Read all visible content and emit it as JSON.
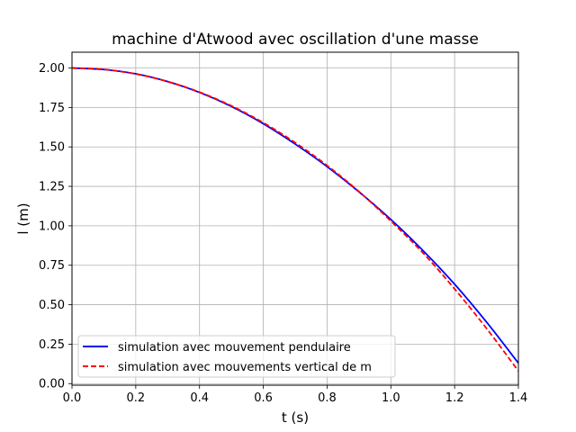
{
  "chart_data": {
    "type": "line",
    "title": "machine d'Atwood avec oscillation d'une masse",
    "xlabel": "t (s)",
    "ylabel": "l (m)",
    "xlim": [
      0,
      1.4
    ],
    "ylim": [
      -0.01,
      2.1
    ],
    "xticks": [
      "0.0",
      "0.2",
      "0.4",
      "0.6",
      "0.8",
      "1.0",
      "1.2",
      "1.4"
    ],
    "yticks": [
      "0.00",
      "0.25",
      "0.50",
      "0.75",
      "1.00",
      "1.25",
      "1.50",
      "1.75",
      "2.00"
    ],
    "grid": true,
    "legend_position": "lower-left",
    "series": [
      {
        "name": "simulation avec mouvement pendulaire",
        "color": "#0000ff",
        "dash": "solid",
        "x": [
          0,
          0.1,
          0.2,
          0.3,
          0.4,
          0.5,
          0.6,
          0.7,
          0.8,
          0.9,
          1.0,
          1.1,
          1.2,
          1.3,
          1.4
        ],
        "y": [
          2.0,
          1.99,
          1.963,
          1.914,
          1.845,
          1.756,
          1.647,
          1.518,
          1.375,
          1.215,
          1.04,
          0.845,
          0.63,
          0.39,
          0.13
        ]
      },
      {
        "name": "simulation avec mouvements vertical de m",
        "color": "#ff0000",
        "dash": "dashed",
        "x": [
          0,
          0.1,
          0.2,
          0.3,
          0.4,
          0.5,
          0.6,
          0.7,
          0.8,
          0.9,
          1.0,
          1.1,
          1.2,
          1.3,
          1.4
        ],
        "y": [
          2.0,
          1.991,
          1.962,
          1.914,
          1.847,
          1.76,
          1.653,
          1.527,
          1.382,
          1.217,
          1.03,
          0.83,
          0.6,
          0.35,
          0.08
        ]
      }
    ]
  }
}
